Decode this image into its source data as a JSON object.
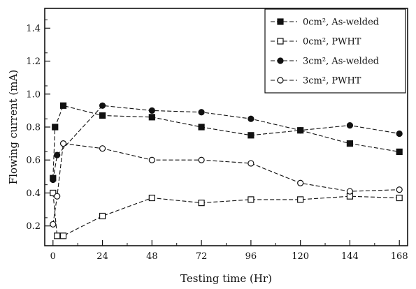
{
  "chart_data": {
    "type": "line",
    "title": "",
    "xlabel": "Testing time (Hr)",
    "ylabel": "Flowing current (mA)",
    "xlim": [
      -4,
      172
    ],
    "ylim": [
      0.08,
      1.52
    ],
    "xticks": [
      0,
      24,
      48,
      72,
      96,
      120,
      144,
      168
    ],
    "xtick_labels": [
      "0",
      "24",
      "48",
      "72",
      "96",
      "120",
      "144",
      "168"
    ],
    "yticks": [
      0.2,
      0.4,
      0.6,
      0.8,
      1.0,
      1.2,
      1.4
    ],
    "ytick_labels": [
      "0.2",
      "0.4",
      "0.6",
      "0.8",
      "1.0",
      "1.2",
      "1.4"
    ],
    "grid": false,
    "legend_position": "top-right",
    "series": [
      {
        "name": "0cm², As-welded",
        "marker": "filled-square",
        "x": [
          0,
          1,
          5,
          24,
          48,
          72,
          96,
          120,
          144,
          168
        ],
        "y": [
          0.49,
          0.8,
          0.93,
          0.87,
          0.86,
          0.8,
          0.75,
          0.78,
          0.7,
          0.65
        ]
      },
      {
        "name": "0cm², PWHT",
        "marker": "open-square",
        "x": [
          0,
          2,
          5,
          24,
          48,
          72,
          96,
          120,
          144,
          168
        ],
        "y": [
          0.4,
          0.14,
          0.14,
          0.26,
          0.37,
          0.34,
          0.36,
          0.36,
          0.38,
          0.37
        ]
      },
      {
        "name": "3cm², As-welded",
        "marker": "filled-circle",
        "x": [
          0,
          2,
          24,
          48,
          72,
          96,
          120,
          144,
          168
        ],
        "y": [
          0.48,
          0.63,
          0.93,
          0.9,
          0.89,
          0.85,
          0.78,
          0.81,
          0.76
        ]
      },
      {
        "name": "3cm², PWHT",
        "marker": "open-circle",
        "x": [
          0,
          2,
          5,
          24,
          48,
          72,
          96,
          120,
          144,
          168
        ],
        "y": [
          0.21,
          0.38,
          0.7,
          0.67,
          0.6,
          0.6,
          0.58,
          0.46,
          0.41,
          0.42
        ]
      }
    ]
  },
  "colors": {
    "ink": "#111111",
    "background": "#ffffff"
  }
}
